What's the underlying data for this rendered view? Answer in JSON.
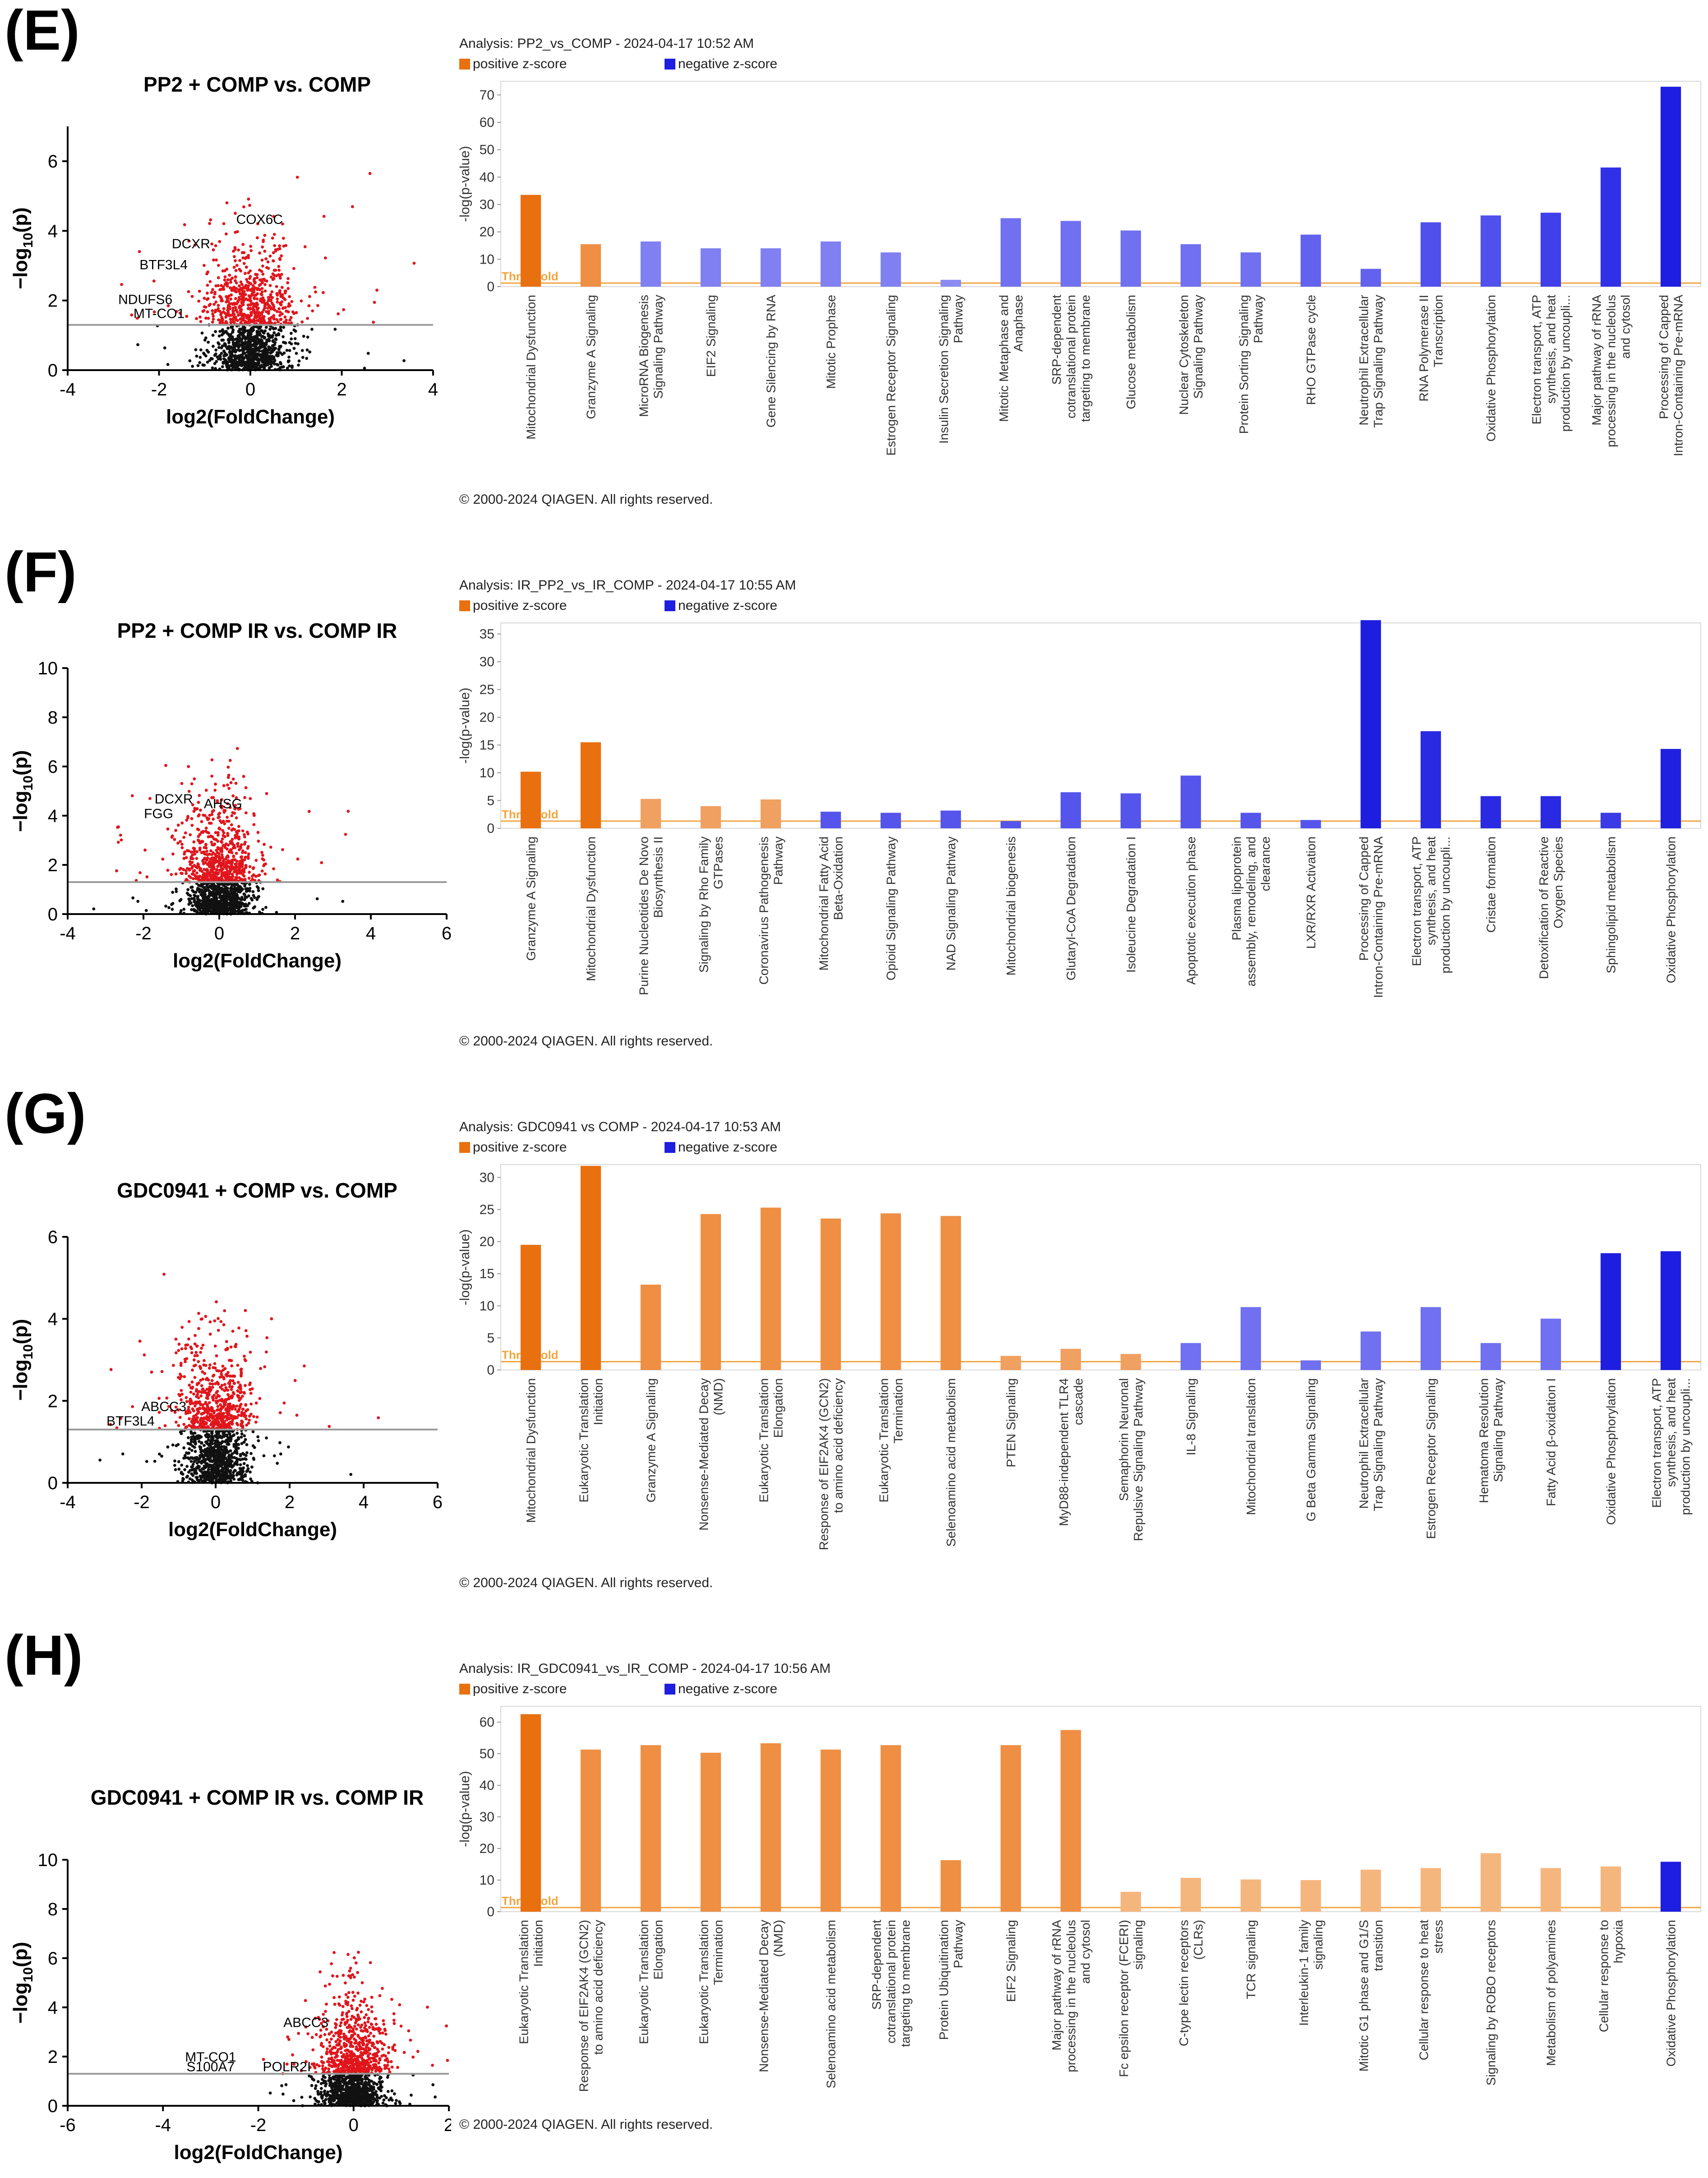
{
  "colors": {
    "positive": "#e8700f",
    "negative": "#1e1ee0",
    "threshold": "#f0a540",
    "volcano_sig": "#e0161c",
    "volcano_ns": "#111111",
    "volcano_threshold_line": "#9a9a9a"
  },
  "legend": {
    "positive_label": "positive z-score",
    "negative_label": "negative z-score"
  },
  "threshold_label": "Threshold",
  "copyright": "© 2000-2024 QIAGEN. All rights reserved.",
  "panels": [
    {
      "letter": "(E)",
      "volcano_title": "PP2 + COMP vs. COMP",
      "analysis": "Analysis: PP2_vs_COMP - 2024-04-17 10:52 AM",
      "chart_data": {
        "type": "bar",
        "title": "",
        "ylabel": "-log(p-value)",
        "ylim": [
          0,
          75
        ],
        "yticks": [
          0,
          10,
          20,
          30,
          40,
          50,
          60,
          70
        ],
        "threshold": 1.3,
        "categories": [
          "Mitochondrial Dysfunction",
          "Granzyme A Signaling",
          "MicroRNA Biogenesis Signaling Pathway",
          "EIF2 Signaling",
          "Gene Silencing by RNA",
          "Mitotic Prophase",
          "Estrogen Receptor Signaling",
          "Insulin Secretion Signaling Pathway",
          "Mitotic Metaphase and Anaphase",
          "SRP-dependent cotranslational protein targeting to membrane",
          "Glucose metabolism",
          "Nuclear Cytoskeleton Signaling Pathway",
          "Protein Sorting Signaling Pathway",
          "RHO GTPase cycle",
          "Neutrophil Extracellular Trap Signaling Pathway",
          "RNA Polymerase II Transcription",
          "Oxidative Phosphorylation",
          "Electron transport, ATP synthesis, and heat production by uncoupli...",
          "Major pathway of rRNA processing in the nucleolus and cytosol",
          "Processing of Capped Intron-Containing Pre-mRNA"
        ],
        "values": [
          33.5,
          15.5,
          16.5,
          14,
          14,
          16.5,
          12.5,
          2.5,
          25,
          24,
          20.5,
          15.5,
          12.5,
          19,
          6.5,
          23.5,
          26,
          27,
          43.5,
          73
        ],
        "colors": [
          "#e8700f",
          "#ee8f44",
          "#8080f2",
          "#8080f2",
          "#8080f2",
          "#8080f2",
          "#8080f2",
          "#8a8af2",
          "#7070f0",
          "#7070f0",
          "#7070f0",
          "#7070f0",
          "#7070f0",
          "#6262ee",
          "#6262ee",
          "#5050ec",
          "#5050ec",
          "#4040ea",
          "#3030e6",
          "#1e1ee0"
        ]
      },
      "volcano": {
        "xlabel": "log2(FoldChange)",
        "ylabel_main": "−log",
        "ylabel_sub": "10",
        "ylabel_end": "(p)",
        "xlim": [
          -4,
          4
        ],
        "ylim": [
          0,
          7
        ],
        "xticks": [
          -4,
          -2,
          0,
          2,
          4
        ],
        "yticks": [
          0,
          2,
          4,
          6
        ],
        "threshold": 1.3,
        "seed": 11,
        "spread": 0.45,
        "labels": [
          {
            "text": "COX6C",
            "x": 0.2,
            "y": 4.2
          },
          {
            "text": "DCXR",
            "x": -1.3,
            "y": 3.5
          },
          {
            "text": "BTF3L4",
            "x": -1.9,
            "y": 2.9
          },
          {
            "text": "NDUFS6",
            "x": -2.3,
            "y": 1.9
          },
          {
            "text": "MT-CO1",
            "x": -2.0,
            "y": 1.5
          }
        ]
      }
    },
    {
      "letter": "(F)",
      "volcano_title": "PP2 + COMP IR vs. COMP IR",
      "analysis": "Analysis: IR_PP2_vs_IR_COMP - 2024-04-17 10:55 AM",
      "chart_data": {
        "type": "bar",
        "title": "",
        "ylabel": "-log(p-value)",
        "ylim": [
          0,
          37
        ],
        "yticks": [
          0,
          5,
          10,
          15,
          20,
          25,
          30,
          35
        ],
        "threshold": 1.3,
        "categories": [
          "Granzyme A Signaling",
          "Mitochondrial Dysfunction",
          "Purine Nucleotides De Novo Biosynthesis II",
          "Signaling by Rho Family GTPases",
          "Coronavirus Pathogenesis Pathway",
          "Mitochondrial Fatty Acid Beta-Oxidation",
          "Opioid Signaling Pathway",
          "NAD Signaling Pathway",
          "Mitochondrial biogenesis",
          "Glutaryl-CoA Degradation",
          "Isoleucine Degradation I",
          "Apoptotic execution phase",
          "Plasma lipoprotein assembly, remodeling, and clearance",
          "LXR/RXR Activation",
          "Processing of Capped Intron-Containing Pre-mRNA",
          "Electron transport, ATP synthesis, and heat production by uncoupli...",
          "Cristae formation",
          "Detoxification of Reactive Oxygen Species",
          "Sphingolipid metabolism",
          "Oxidative Phosphorylation"
        ],
        "values": [
          10.2,
          15.5,
          5.3,
          4,
          5.2,
          3,
          2.8,
          3.2,
          1.3,
          6.5,
          6.3,
          9.5,
          2.8,
          1.5,
          37.5,
          17.5,
          5.8,
          5.8,
          2.8,
          14.3
        ],
        "colors": [
          "#e8700f",
          "#e8700f",
          "#f0a060",
          "#f0a060",
          "#f0a060",
          "#5555ec",
          "#5555ec",
          "#5555ec",
          "#5555ec",
          "#5555ec",
          "#5555ec",
          "#5555ec",
          "#5555ec",
          "#5555ec",
          "#1e1ee0",
          "#2a2ae2",
          "#2a2ae2",
          "#2a2ae2",
          "#3a3ae6",
          "#2020e0"
        ]
      },
      "volcano": {
        "xlabel": "log2(FoldChange)",
        "ylabel_main": "−log",
        "ylabel_sub": "10",
        "ylabel_end": "(p)",
        "xlim": [
          -4,
          6
        ],
        "ylim": [
          0,
          10
        ],
        "xticks": [
          -4,
          -2,
          0,
          2,
          4,
          6
        ],
        "yticks": [
          0,
          2,
          4,
          6,
          8,
          10
        ],
        "threshold": 1.3,
        "seed": 23,
        "spread": 0.45,
        "labels": [
          {
            "text": "DCXR",
            "x": -1.2,
            "y": 4.5
          },
          {
            "text": "AHSG",
            "x": 0.1,
            "y": 4.3
          },
          {
            "text": "FGG",
            "x": -1.6,
            "y": 3.9
          }
        ]
      }
    },
    {
      "letter": "(G)",
      "volcano_title": "GDC0941 + COMP vs. COMP",
      "analysis": "Analysis: GDC0941 vs COMP - 2024-04-17 10:53 AM",
      "chart_data": {
        "type": "bar",
        "title": "",
        "ylabel": "-log(p-value)",
        "ylim": [
          0,
          32
        ],
        "yticks": [
          0,
          5,
          10,
          15,
          20,
          25,
          30
        ],
        "threshold": 1.3,
        "categories": [
          "Mitochondrial Dysfunction",
          "Eukaryotic Translation Initiation",
          "Granzyme A Signaling",
          "Nonsense-Mediated Decay (NMD)",
          "Eukaryotic Translation Elongation",
          "Response of EIF2AK4 (GCN2) to amino acid deficiency",
          "Eukaryotic Translation Termination",
          "Selenoamino acid metabolism",
          "PTEN Signaling",
          "MyD88-independent TLR4 cascade",
          "Semaphorin Neuronal Repulsive Signaling Pathway",
          "IL-8 Signaling",
          "Mitochondrial translation",
          "G Beta Gamma Signaling",
          "Neutrophil Extracellular Trap Signaling Pathway",
          "Estrogen Receptor Signaling",
          "Hematoma Resolution Signaling Pathway",
          "Fatty Acid β-oxidation I",
          "Oxidative Phosphorylation",
          "Electron transport, ATP synthesis, and heat production by uncoupli..."
        ],
        "values": [
          19.5,
          31.8,
          13.3,
          24.3,
          25.3,
          23.6,
          24.4,
          24,
          2.2,
          3.3,
          2.5,
          4.2,
          9.8,
          1.5,
          6,
          9.8,
          4.2,
          8,
          18.2,
          18.5
        ],
        "colors": [
          "#e8700f",
          "#e8700f",
          "#ee8f44",
          "#ee8f44",
          "#ee8f44",
          "#ee8f44",
          "#ee8f44",
          "#ee8f44",
          "#f0a060",
          "#f0a060",
          "#f0a060",
          "#7070f0",
          "#7070f0",
          "#7070f0",
          "#7070f0",
          "#7070f0",
          "#7070f0",
          "#7070f0",
          "#1e1ee0",
          "#1e1ee0"
        ]
      },
      "volcano": {
        "xlabel": "log2(FoldChange)",
        "ylabel_main": "−log",
        "ylabel_sub": "10",
        "ylabel_end": "(p)",
        "xlim": [
          -4,
          6
        ],
        "ylim": [
          0,
          6
        ],
        "xticks": [
          -4,
          -2,
          0,
          2,
          4,
          6
        ],
        "yticks": [
          0,
          2,
          4,
          6
        ],
        "threshold": 1.3,
        "seed": 37,
        "spread": 0.45,
        "labels": [
          {
            "text": "ABCC3",
            "x": -1.4,
            "y": 1.75
          },
          {
            "text": "BTF3L4",
            "x": -2.3,
            "y": 1.4
          }
        ]
      }
    },
    {
      "letter": "(H)",
      "volcano_title": "GDC0941 + COMP IR vs. COMP IR",
      "analysis": "Analysis: IR_GDC0941_vs_IR_COMP - 2024-04-17 10:56 AM",
      "chart_data": {
        "type": "bar",
        "title": "",
        "ylabel": "-log(p-value)",
        "ylim": [
          0,
          65
        ],
        "yticks": [
          0,
          10,
          20,
          30,
          40,
          50,
          60
        ],
        "threshold": 1.3,
        "categories": [
          "Eukaryotic Translation Initiation",
          "Response of EIF2AK4 (GCN2) to amino acid deficiency",
          "Eukaryotic Translation Elongation",
          "Eukaryotic Translation Termination",
          "Nonsense-Mediated Decay (NMD)",
          "Selenoamino acid metabolism",
          "SRP-dependent cotranslational protein targeting to membrane",
          "Protein Ubiquitination Pathway",
          "EIF2 Signaling",
          "Major pathway of rRNA processing in the nucleolus and cytosol",
          "Fc epsilon receptor (FCERI) signaling",
          "C-type lectin receptors (CLRs)",
          "TCR signaling",
          "Interleukin-1 family signaling",
          "Mitotic G1 phase and G1/S transition",
          "Cellular response to heat stress",
          "Signaling by ROBO receptors",
          "Metabolism of polyamines",
          "Cellular response to hypoxia",
          "Oxidative Phosphorylation"
        ],
        "values": [
          62.5,
          51.3,
          52.7,
          50.3,
          53.3,
          51.3,
          52.7,
          16.3,
          52.7,
          57.5,
          6.3,
          10.7,
          10.2,
          10,
          13.3,
          13.8,
          18.5,
          13.8,
          14.3,
          15.8
        ],
        "colors": [
          "#e8700f",
          "#ee8f44",
          "#ee8f44",
          "#ee8f44",
          "#ee8f44",
          "#ee8f44",
          "#ee8f44",
          "#ee8f44",
          "#ee8f44",
          "#ee8f44",
          "#f5b67e",
          "#f5b67e",
          "#f5b67e",
          "#f5b67e",
          "#f5b67e",
          "#f5b67e",
          "#f5b67e",
          "#f5b67e",
          "#f5b67e",
          "#1e1ee0"
        ]
      },
      "volcano": {
        "xlabel": "log2(FoldChange)",
        "ylabel_main": "−log",
        "ylabel_sub": "10",
        "ylabel_end": "(p)",
        "xlim": [
          -6,
          2
        ],
        "ylim": [
          0,
          10
        ],
        "xticks": [
          -6,
          -4,
          -2,
          0,
          2
        ],
        "yticks": [
          0,
          2,
          4,
          6,
          8,
          10
        ],
        "threshold": 1.3,
        "seed": 53,
        "spread": 0.35,
        "labels": [
          {
            "text": "ABCC3",
            "x": -1.0,
            "y": 3.2
          },
          {
            "text": "MT-CO1",
            "x": -3.0,
            "y": 1.8
          },
          {
            "text": "S100A7",
            "x": -3.0,
            "y": 1.4
          },
          {
            "text": "POLR2I",
            "x": -1.4,
            "y": 1.4
          }
        ]
      }
    }
  ]
}
